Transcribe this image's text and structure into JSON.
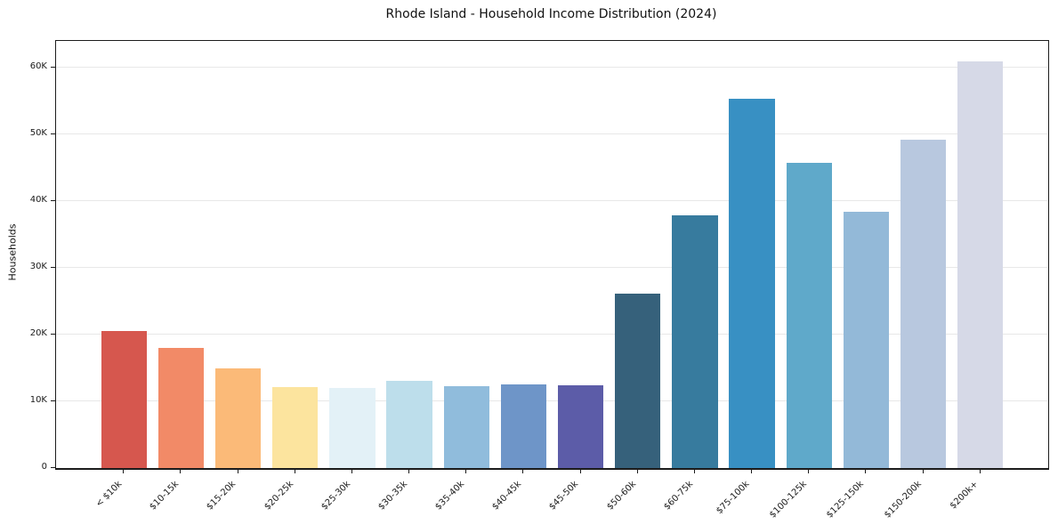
{
  "title": "Rhode Island - Household Income Distribution (2024)",
  "colors": {
    "background": "#ffffff",
    "axis": "#1c1c1c",
    "grid": "#e8e8e8",
    "text": "#1a1a1a"
  },
  "chart_data": {
    "type": "bar",
    "title": "Rhode Island - Household Income Distribution (2024)",
    "xlabel": "",
    "ylabel": "Households",
    "ylim": [
      0,
      64000
    ],
    "grid": "horizontal",
    "legend": "none",
    "yticks": [
      {
        "value": 0,
        "label": "0"
      },
      {
        "value": 10000,
        "label": "10K"
      },
      {
        "value": 20000,
        "label": "20K"
      },
      {
        "value": 30000,
        "label": "30K"
      },
      {
        "value": 40000,
        "label": "40K"
      },
      {
        "value": 50000,
        "label": "50K"
      },
      {
        "value": 60000,
        "label": "60K"
      }
    ],
    "categories": [
      "< $10k",
      "$10-15k",
      "$15-20k",
      "$20-25k",
      "$25-30k",
      "$30-35k",
      "$35-40k",
      "$40-45k",
      "$45-50k",
      "$50-60k",
      "$60-75k",
      "$75-100k",
      "$100-125k",
      "$125-150k",
      "$150-200k",
      "$200k+"
    ],
    "values": [
      20500,
      18000,
      14950,
      12100,
      12000,
      13050,
      12250,
      12500,
      12400,
      26200,
      37900,
      55400,
      45800,
      38400,
      49150,
      61000
    ],
    "bar_colors": [
      "#d6574e",
      "#f28a67",
      "#fbba78",
      "#fce49e",
      "#e3f1f7",
      "#bddeeb",
      "#90bcdc",
      "#6e95c8",
      "#5c5ca8",
      "#36617b",
      "#377b9e",
      "#3890c3",
      "#5fa9ca",
      "#93b9d8",
      "#b8c8df",
      "#d6d9e7"
    ]
  }
}
